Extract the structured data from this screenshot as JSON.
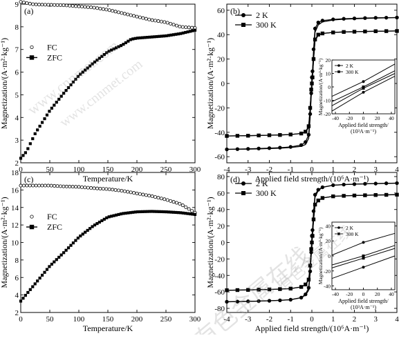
{
  "chart_data": [
    {
      "panel": "(a)",
      "type": "scatter",
      "xlabel": "Temperature/K",
      "ylabel": "Magnetization/(A·m²·kg⁻¹)",
      "xlim": [
        0,
        300
      ],
      "ylim": [
        2,
        9
      ],
      "xticks": [
        "0",
        "50",
        "100",
        "150",
        "200",
        "250",
        "300"
      ],
      "yticks": [
        "2",
        "3",
        "4",
        "5",
        "6",
        "7",
        "8",
        "9"
      ],
      "grid": false,
      "legend_position": "middle-left",
      "series": [
        {
          "name": "FC",
          "marker": "open-circle",
          "x": [
            0,
            10,
            20,
            30,
            50,
            75,
            100,
            125,
            150,
            175,
            200,
            225,
            250,
            275,
            300
          ],
          "y": [
            9.1,
            9.05,
            9.0,
            8.98,
            8.97,
            8.95,
            8.9,
            8.85,
            8.75,
            8.6,
            8.45,
            8.3,
            8.2,
            8.0,
            7.95
          ]
        },
        {
          "name": "ZFC",
          "marker": "filled-square",
          "x": [
            0,
            10,
            25,
            50,
            75,
            100,
            125,
            150,
            175,
            190,
            200,
            225,
            250,
            275,
            300
          ],
          "y": [
            2.2,
            2.5,
            3.3,
            4.3,
            5.1,
            5.85,
            6.4,
            6.9,
            7.2,
            7.45,
            7.5,
            7.55,
            7.6,
            7.7,
            7.85
          ]
        }
      ]
    },
    {
      "panel": "(b)",
      "type": "line",
      "xlabel": "Applied field strength/(10⁶A·m⁻¹)",
      "ylabel": "Magnetization/(A·m²·kg⁻¹)",
      "xlim": [
        -4,
        4
      ],
      "ylim": [
        -65,
        65
      ],
      "xticks": [
        "-4",
        "-3",
        "-2",
        "-1",
        "0",
        "1",
        "2",
        "3",
        "4"
      ],
      "yticks": [
        "-60",
        "-40",
        "-20",
        "0",
        "20",
        "40",
        "60"
      ],
      "grid": false,
      "legend_position": "top-center",
      "series": [
        {
          "name": "2 K",
          "marker": "filled-circle",
          "x": [
            -4,
            -3.5,
            -3,
            -2.5,
            -2,
            -1.5,
            -1,
            -0.5,
            -0.3,
            -0.15,
            -0.08,
            -0.03,
            0,
            0.03,
            0.08,
            0.15,
            0.3,
            0.5,
            1,
            1.5,
            2,
            2.5,
            3,
            3.5,
            4
          ],
          "y": [
            -54,
            -53.8,
            -53.6,
            -53.3,
            -53,
            -52.6,
            -52,
            -50.5,
            -48,
            -42,
            -25,
            -8,
            5,
            10,
            28,
            45,
            50,
            51.5,
            52.5,
            53,
            53.3,
            53.6,
            53.8,
            53.9,
            54
          ]
        },
        {
          "name": "300 K",
          "marker": "filled-square",
          "x": [
            -4,
            -3.5,
            -3,
            -2.5,
            -2,
            -1.5,
            -1,
            -0.5,
            -0.3,
            -0.15,
            -0.08,
            -0.03,
            0,
            0.03,
            0.08,
            0.15,
            0.3,
            0.5,
            1,
            1.5,
            2,
            2.5,
            3,
            3.5,
            4
          ],
          "y": [
            -43,
            -42.9,
            -42.8,
            -42.6,
            -42.4,
            -42.2,
            -41.8,
            -41,
            -39.5,
            -35,
            -20,
            -5,
            0,
            5,
            20,
            36,
            40,
            41,
            41.8,
            42.2,
            42.4,
            42.6,
            42.8,
            42.9,
            43
          ]
        }
      ],
      "inset": {
        "xlabel": "Applied field strength/(10³A·m⁻¹)",
        "ylabel": "Magnetization/(A·m²·kg⁻¹)",
        "xlim": [
          -45,
          45
        ],
        "ylim": [
          -20,
          20
        ],
        "xticks": [
          "-40",
          "-20",
          "0",
          "20",
          "40"
        ],
        "yticks": [
          "-20",
          "-10",
          "0",
          "10",
          "20"
        ],
        "series": [
          {
            "name": "2 K",
            "marker": "filled-circle",
            "branches": [
              {
                "x": [
                  -45,
                  0,
                  45
                ],
                "y": [
                  -7,
                  4,
                  17
                ]
              },
              {
                "x": [
                  -45,
                  0,
                  45
                ],
                "y": [
                  -18,
                  -4,
                  8
                ]
              }
            ]
          },
          {
            "name": "300 K",
            "marker": "filled-square",
            "branches": [
              {
                "x": [
                  -45,
                  0,
                  45
                ],
                "y": [
                  -11,
                  0,
                  12
                ]
              },
              {
                "x": [
                  -45,
                  0,
                  45
                ],
                "y": [
                  -14,
                  -1,
                  10
                ]
              }
            ]
          }
        ]
      }
    },
    {
      "panel": "(c)",
      "type": "scatter",
      "xlabel": "Temperature/K",
      "ylabel": "Magnetization/(A·m²·kg⁻¹)",
      "xlim": [
        0,
        300
      ],
      "ylim": [
        2,
        18
      ],
      "xticks": [
        "0",
        "50",
        "100",
        "150",
        "200",
        "250",
        "300"
      ],
      "yticks": [
        "2",
        "4",
        "6",
        "8",
        "10",
        "12",
        "14",
        "16",
        "18"
      ],
      "grid": false,
      "legend_position": "middle-left",
      "series": [
        {
          "name": "FC",
          "marker": "open-circle",
          "x": [
            0,
            25,
            50,
            75,
            100,
            125,
            150,
            175,
            200,
            225,
            250,
            275,
            300
          ],
          "y": [
            16.5,
            16.5,
            16.5,
            16.4,
            16.35,
            16.2,
            16.1,
            15.9,
            15.6,
            15.3,
            14.9,
            14.4,
            13.4
          ]
        },
        {
          "name": "ZFC",
          "marker": "filled-square",
          "x": [
            0,
            25,
            50,
            75,
            100,
            125,
            150,
            175,
            200,
            225,
            250,
            275,
            300
          ],
          "y": [
            3.3,
            5.3,
            7.3,
            8.9,
            10.6,
            11.9,
            12.9,
            13.3,
            13.5,
            13.55,
            13.5,
            13.4,
            13.2
          ]
        }
      ]
    },
    {
      "panel": "(d)",
      "type": "line",
      "xlabel": "Applied field strength/(10⁶A·m⁻¹)",
      "ylabel": "Magnetization/(A·m²·kg⁻¹)",
      "xlim": [
        -4,
        4
      ],
      "ylim": [
        -85,
        85
      ],
      "xticks": [
        "-4",
        "-3",
        "-2",
        "-1",
        "0",
        "1",
        "2",
        "3",
        "4"
      ],
      "yticks": [
        "-80",
        "-60",
        "-40",
        "-20",
        "0",
        "20",
        "40",
        "60",
        "80"
      ],
      "grid": false,
      "legend_position": "top-center",
      "series": [
        {
          "name": "2 K",
          "marker": "filled-circle",
          "x": [
            -4,
            -3.5,
            -3,
            -2.5,
            -2,
            -1.5,
            -1,
            -0.5,
            -0.3,
            -0.15,
            -0.08,
            -0.03,
            0,
            0.03,
            0.08,
            0.15,
            0.3,
            0.5,
            1,
            1.5,
            2,
            2.5,
            3,
            3.5,
            4
          ],
          "y": [
            -72,
            -71.8,
            -71.5,
            -71.2,
            -70.8,
            -70.3,
            -69.5,
            -67,
            -63,
            -55,
            -35,
            -12,
            8,
            15,
            38,
            58,
            64,
            67,
            69.5,
            70.3,
            70.8,
            71.2,
            71.5,
            71.8,
            72
          ]
        },
        {
          "name": "300 K",
          "marker": "filled-square",
          "x": [
            -4,
            -3.5,
            -3,
            -2.5,
            -2,
            -1.5,
            -1,
            -0.5,
            -0.3,
            -0.15,
            -0.08,
            -0.03,
            0,
            0.03,
            0.08,
            0.15,
            0.3,
            0.5,
            1,
            1.5,
            2,
            2.5,
            3,
            3.5,
            4
          ],
          "y": [
            -58,
            -57.8,
            -57.6,
            -57.3,
            -57,
            -56.6,
            -56,
            -54,
            -51,
            -45,
            -28,
            -8,
            0,
            8,
            28,
            46,
            51,
            54,
            56,
            56.6,
            57,
            57.3,
            57.6,
            57.8,
            58
          ]
        }
      ],
      "inset": {
        "xlabel": "Applied field strength/(10³A·m⁻¹)",
        "ylabel": "Magnetization/(A·m²·kg⁻¹)",
        "xlim": [
          -45,
          45
        ],
        "ylim": [
          -45,
          45
        ],
        "xticks": [
          "-40",
          "-20",
          "0",
          "20",
          "40"
        ],
        "yticks": [
          "-40",
          "-20",
          "0",
          "20",
          "40"
        ],
        "series": [
          {
            "name": "2 K",
            "marker": "filled-circle",
            "branches": [
              {
                "x": [
                  -45,
                  0,
                  45
                ],
                "y": [
                  1,
                  18,
                  30
                ]
              },
              {
                "x": [
                  -45,
                  0,
                  45
                ],
                "y": [
                  -30,
                  -15,
                  0
                ]
              }
            ]
          },
          {
            "name": "300 K",
            "marker": "filled-square",
            "branches": [
              {
                "x": [
                  -45,
                  0,
                  45
                ],
                "y": [
                  -12,
                  0,
                  14
                ]
              },
              {
                "x": [
                  -45,
                  0,
                  45
                ],
                "y": [
                  -16,
                  -3,
                  10
                ]
              }
            ]
          }
        ]
      }
    }
  ],
  "watermark": {
    "chinese": "有色金属在线",
    "url": "www.cnnmet.com"
  }
}
